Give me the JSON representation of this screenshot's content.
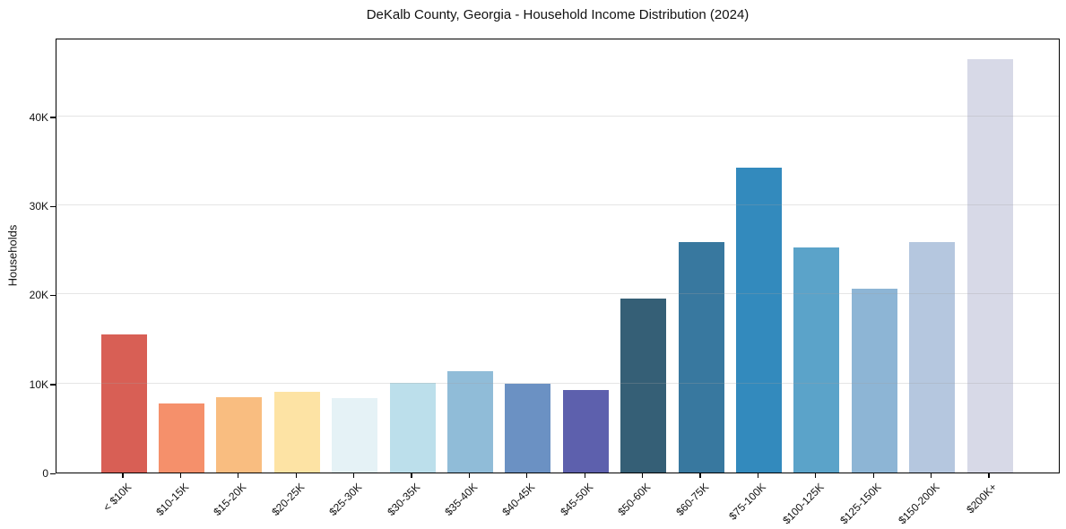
{
  "chart_data": {
    "type": "bar",
    "title": "DeKalb County, Georgia - Household Income Distribution (2024)",
    "xlabel": "",
    "ylabel": "Households",
    "ylim": [
      0,
      48850
    ],
    "grid": "horizontal",
    "legend": "none",
    "background": "#ffffff",
    "categories": [
      "< $10K",
      "$10-15K",
      "$15-20K",
      "$20-25K",
      "$25-30K",
      "$30-35K",
      "$35-40K",
      "$40-45K",
      "$45-50K",
      "$50-60K",
      "$60-75K",
      "$75-100K",
      "$100-125K",
      "$125-150K",
      "$150-200K",
      "$200K+"
    ],
    "values": [
      15500,
      7800,
      8500,
      9100,
      8400,
      10100,
      11400,
      10000,
      9300,
      19500,
      25900,
      34200,
      25300,
      20600,
      25900,
      46400
    ],
    "bar_colors": [
      "#d85f55",
      "#f5906b",
      "#f9bd80",
      "#fde3a4",
      "#e5f2f6",
      "#bcdfeb",
      "#90bcd8",
      "#6b91c3",
      "#5d60ad",
      "#355f76",
      "#38789f",
      "#338abd",
      "#5ba3c9",
      "#8db5d5",
      "#b5c7df",
      "#d7d9e7"
    ],
    "ytick_values": [
      0,
      10000,
      20000,
      30000,
      40000
    ],
    "ytick_labels": [
      "0",
      "10K",
      "20K",
      "30K",
      "40K"
    ]
  }
}
